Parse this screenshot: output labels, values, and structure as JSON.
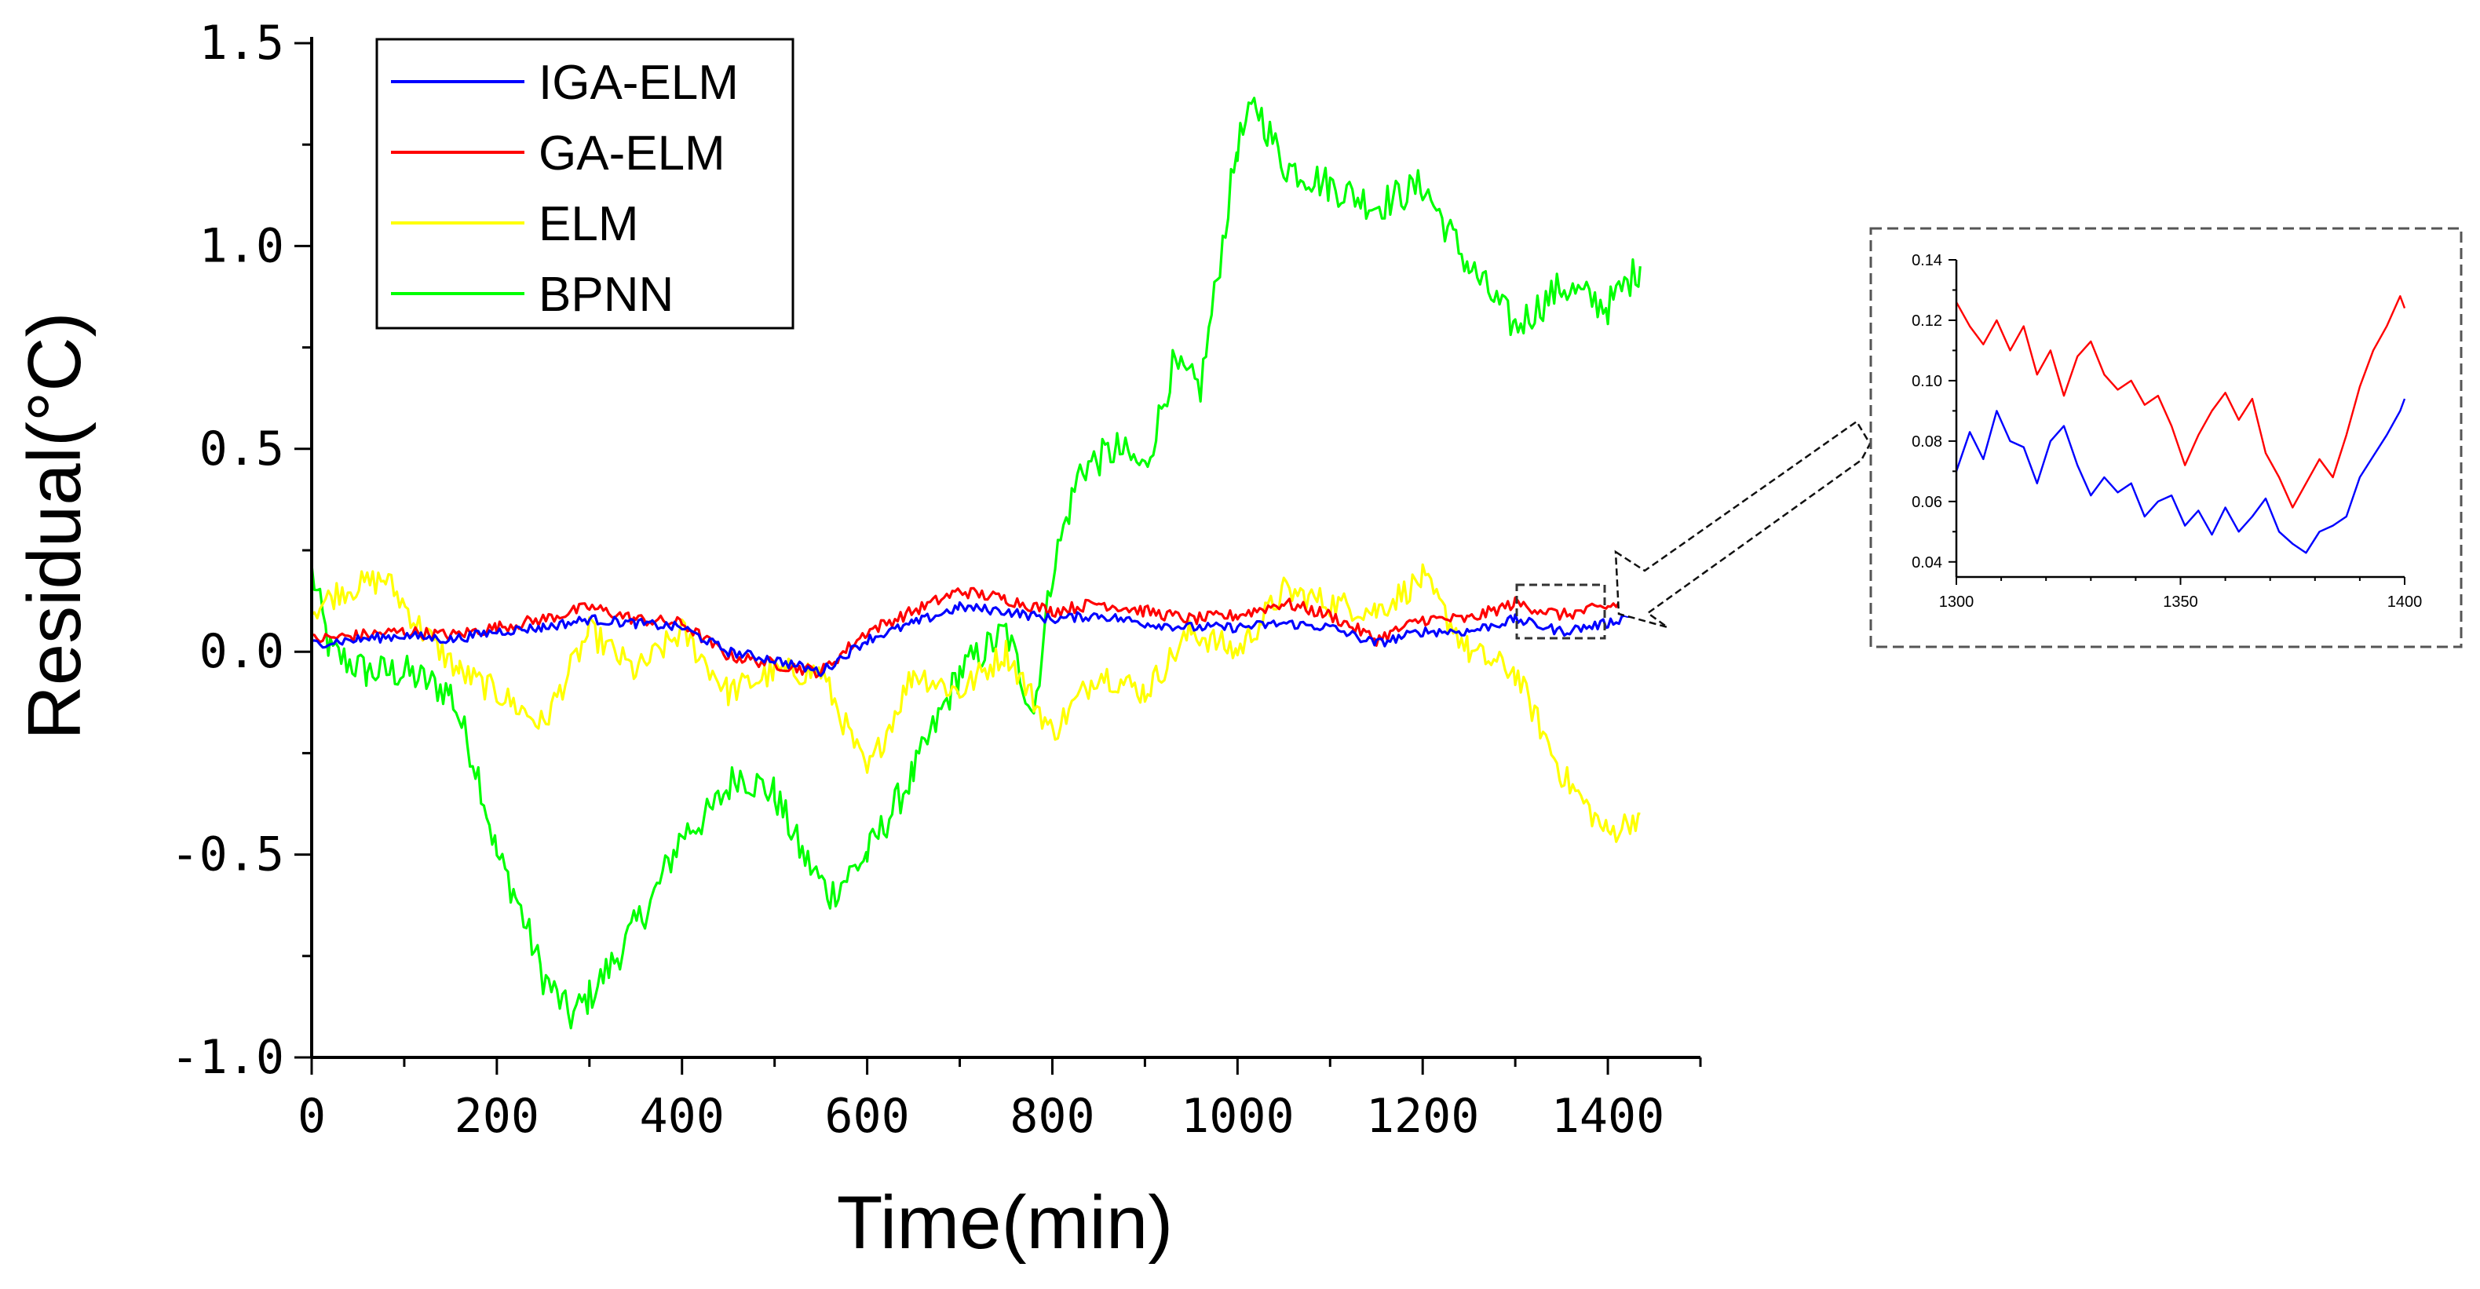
{
  "chart_data": [
    {
      "type": "line",
      "title": "",
      "xlabel": "Time(min)",
      "ylabel": "Residual(°C)",
      "xlim": [
        0,
        1500
      ],
      "ylim": [
        -1.0,
        1.5
      ],
      "x_ticks": [
        "0",
        "200",
        "400",
        "600",
        "800",
        "1000",
        "1200",
        "1400"
      ],
      "y_ticks": [
        "1.5",
        "1.0",
        "0.5",
        "0.0",
        "-0.5",
        "-1.0"
      ],
      "legend": {
        "placement": "top-left",
        "entries": [
          "IGA-ELM",
          "GA-ELM",
          "ELM",
          "BPNN"
        ]
      },
      "grid": false,
      "series": [
        {
          "name": "IGA-ELM",
          "color": "#0000ff",
          "x": [
            0,
            50,
            100,
            150,
            200,
            250,
            300,
            350,
            400,
            450,
            500,
            550,
            600,
            650,
            700,
            750,
            800,
            850,
            900,
            950,
            1000,
            1050,
            1100,
            1150,
            1200,
            1250,
            1300,
            1350,
            1400,
            1435
          ],
          "y": [
            0.02,
            0.03,
            0.04,
            0.03,
            0.05,
            0.06,
            0.08,
            0.07,
            0.06,
            0.0,
            -0.02,
            -0.05,
            0.03,
            0.07,
            0.11,
            0.1,
            0.08,
            0.09,
            0.07,
            0.06,
            0.06,
            0.07,
            0.06,
            0.02,
            0.05,
            0.05,
            0.08,
            0.05,
            0.07,
            0.1
          ]
        },
        {
          "name": "GA-ELM",
          "color": "#ff0000",
          "x": [
            0,
            50,
            100,
            150,
            200,
            250,
            300,
            350,
            400,
            450,
            500,
            550,
            600,
            650,
            700,
            750,
            800,
            850,
            900,
            950,
            1000,
            1050,
            1100,
            1150,
            1200,
            1250,
            1300,
            1350,
            1400,
            1435
          ],
          "y": [
            0.03,
            0.04,
            0.05,
            0.04,
            0.06,
            0.08,
            0.11,
            0.08,
            0.07,
            -0.01,
            -0.03,
            -0.05,
            0.05,
            0.1,
            0.15,
            0.13,
            0.1,
            0.12,
            0.1,
            0.08,
            0.09,
            0.12,
            0.09,
            0.03,
            0.08,
            0.08,
            0.12,
            0.09,
            0.11,
            0.14
          ]
        },
        {
          "name": "ELM",
          "color": "#ffff00",
          "x": [
            0,
            30,
            80,
            120,
            160,
            200,
            250,
            300,
            350,
            400,
            450,
            500,
            550,
            600,
            650,
            700,
            750,
            800,
            850,
            900,
            950,
            1000,
            1050,
            1100,
            1150,
            1200,
            1250,
            1300,
            1350,
            1400,
            1435
          ],
          "y": [
            0.1,
            0.15,
            0.18,
            0.05,
            -0.05,
            -0.1,
            -0.18,
            0.05,
            -0.05,
            0.05,
            -0.1,
            -0.05,
            -0.05,
            -0.3,
            -0.05,
            -0.1,
            0.0,
            -0.2,
            -0.05,
            -0.1,
            0.05,
            0.0,
            0.15,
            0.12,
            0.1,
            0.18,
            0.0,
            -0.05,
            -0.3,
            -0.45,
            -0.4
          ]
        },
        {
          "name": "BPNN",
          "color": "#00ff00",
          "x": [
            0,
            20,
            60,
            100,
            150,
            180,
            200,
            220,
            250,
            280,
            300,
            330,
            370,
            400,
            430,
            460,
            500,
            530,
            560,
            600,
            650,
            700,
            750,
            780,
            800,
            830,
            870,
            900,
            930,
            960,
            1000,
            1020,
            1050,
            1100,
            1150,
            1200,
            1250,
            1300,
            1350,
            1400,
            1435
          ],
          "y": [
            0.2,
            0.0,
            -0.05,
            -0.05,
            -0.1,
            -0.3,
            -0.5,
            -0.6,
            -0.8,
            -0.9,
            -0.85,
            -0.75,
            -0.6,
            -0.45,
            -0.4,
            -0.3,
            -0.35,
            -0.5,
            -0.6,
            -0.5,
            -0.3,
            -0.05,
            0.05,
            -0.15,
            0.2,
            0.45,
            0.5,
            0.45,
            0.7,
            0.65,
            1.25,
            1.35,
            1.2,
            1.15,
            1.1,
            1.15,
            0.95,
            0.8,
            0.9,
            0.85,
            0.95
          ]
        }
      ]
    },
    {
      "type": "line",
      "title": "",
      "xlabel": "",
      "ylabel": "",
      "xlim": [
        1300,
        1400
      ],
      "ylim": [
        0.035,
        0.14
      ],
      "x_ticks": [
        "1300",
        "1350",
        "1400"
      ],
      "y_ticks": [
        "0.14",
        "0.12",
        "0.10",
        "0.08",
        "0.06",
        "0.04"
      ],
      "grid": false,
      "series": [
        {
          "color": "#0000ff",
          "x": [
            1300,
            1303,
            1306,
            1309,
            1312,
            1315,
            1318,
            1321,
            1324,
            1327,
            1330,
            1333,
            1336,
            1339,
            1342,
            1345,
            1348,
            1351,
            1354,
            1357,
            1360,
            1363,
            1366,
            1369,
            1372,
            1375,
            1378,
            1381,
            1384,
            1387,
            1390,
            1393,
            1396,
            1399,
            1400
          ],
          "y": [
            0.07,
            0.083,
            0.074,
            0.09,
            0.08,
            0.078,
            0.066,
            0.08,
            0.085,
            0.072,
            0.062,
            0.068,
            0.063,
            0.066,
            0.055,
            0.06,
            0.062,
            0.052,
            0.057,
            0.049,
            0.058,
            0.05,
            0.055,
            0.061,
            0.05,
            0.046,
            0.043,
            0.05,
            0.052,
            0.055,
            0.068,
            0.075,
            0.082,
            0.09,
            0.094
          ]
        },
        {
          "color": "#ff0000",
          "x": [
            1300,
            1303,
            1306,
            1309,
            1312,
            1315,
            1318,
            1321,
            1324,
            1327,
            1330,
            1333,
            1336,
            1339,
            1342,
            1345,
            1348,
            1351,
            1354,
            1357,
            1360,
            1363,
            1366,
            1369,
            1372,
            1375,
            1378,
            1381,
            1384,
            1387,
            1390,
            1393,
            1396,
            1399,
            1400
          ],
          "y": [
            0.126,
            0.118,
            0.112,
            0.12,
            0.11,
            0.118,
            0.102,
            0.11,
            0.095,
            0.108,
            0.113,
            0.102,
            0.097,
            0.1,
            0.092,
            0.095,
            0.085,
            0.072,
            0.082,
            0.09,
            0.096,
            0.087,
            0.094,
            0.076,
            0.068,
            0.058,
            0.066,
            0.074,
            0.068,
            0.082,
            0.098,
            0.11,
            0.118,
            0.128,
            0.124
          ]
        }
      ]
    }
  ]
}
